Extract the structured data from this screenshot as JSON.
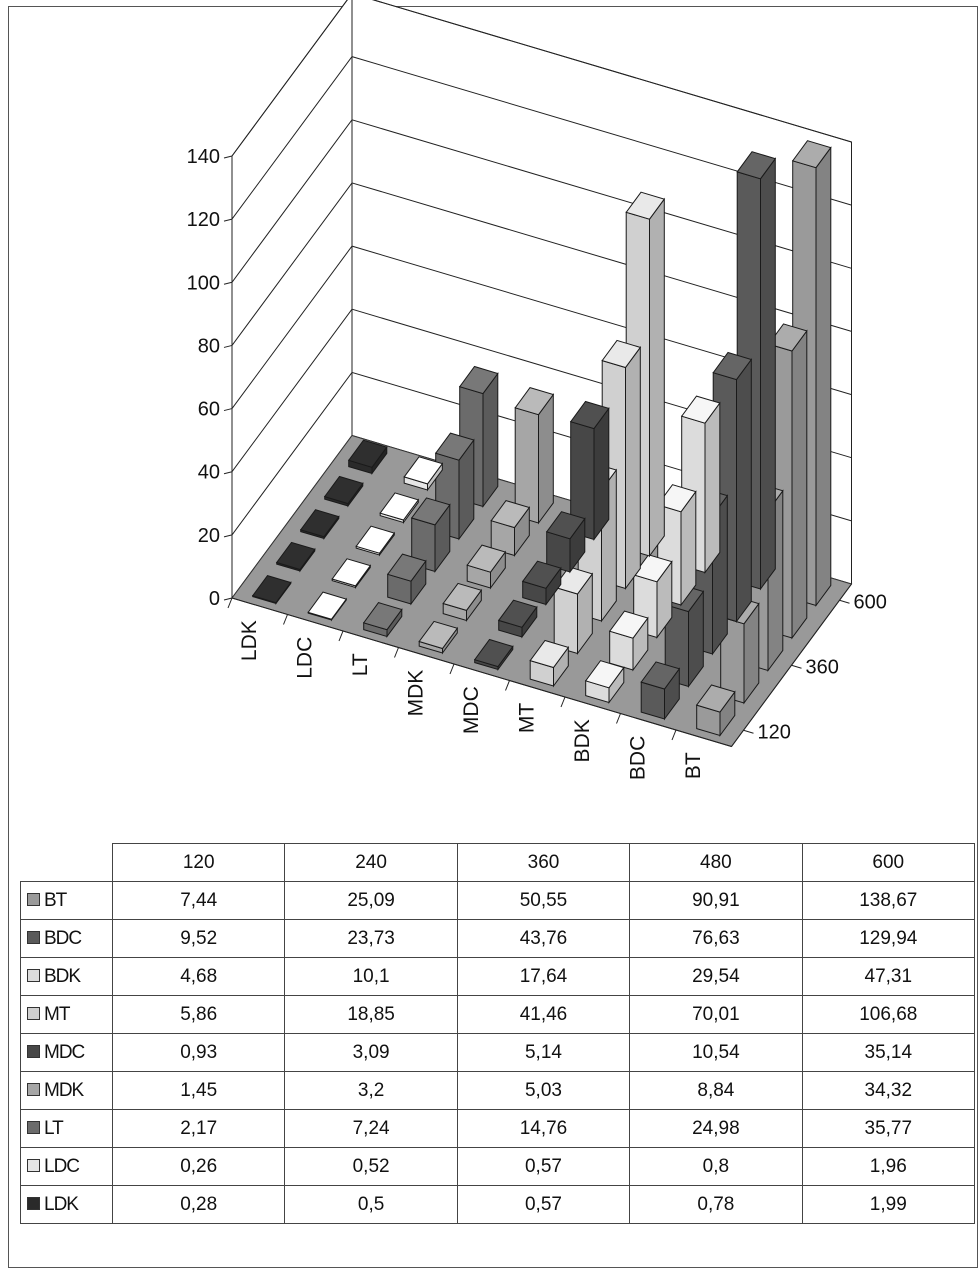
{
  "chart_data": {
    "type": "bar",
    "variant": "3d-grouped-bar",
    "categories": [
      "120",
      "240",
      "360",
      "480",
      "600"
    ],
    "series": [
      {
        "name": "BT",
        "values": [
          7.44,
          25.09,
          50.55,
          90.91,
          138.67
        ],
        "value_labels": [
          "7,44",
          "25,09",
          "50,55",
          "90,91",
          "138,67"
        ],
        "color": "#9a9a9a"
      },
      {
        "name": "BDC",
        "values": [
          9.52,
          23.73,
          43.76,
          76.63,
          129.94
        ],
        "value_labels": [
          "9,52",
          "23,73",
          "43,76",
          "76,63",
          "129,94"
        ],
        "color": "#5a5a5a"
      },
      {
        "name": "BDK",
        "values": [
          4.68,
          10.1,
          17.64,
          29.54,
          47.31
        ],
        "value_labels": [
          "4,68",
          "10,1",
          "17,64",
          "29,54",
          "47,31"
        ],
        "color": "#dcdcdc"
      },
      {
        "name": "MT",
        "values": [
          5.86,
          18.85,
          41.46,
          70.01,
          106.68
        ],
        "value_labels": [
          "5,86",
          "18,85",
          "41,46",
          "70,01",
          "106,68"
        ],
        "color": "#d0d0d0"
      },
      {
        "name": "MDC",
        "values": [
          0.93,
          3.09,
          5.14,
          10.54,
          35.14
        ],
        "value_labels": [
          "0,93",
          "3,09",
          "5,14",
          "10,54",
          "35,14"
        ],
        "color": "#474747"
      },
      {
        "name": "MDK",
        "values": [
          1.45,
          3.2,
          5.03,
          8.84,
          34.32
        ],
        "value_labels": [
          "1,45",
          "3,2",
          "5,03",
          "8,84",
          "34,32"
        ],
        "color": "#a6a6a6"
      },
      {
        "name": "LT",
        "values": [
          2.17,
          7.24,
          14.76,
          24.98,
          35.77
        ],
        "value_labels": [
          "2,17",
          "7,24",
          "14,76",
          "24,98",
          "35,77"
        ],
        "color": "#6b6b6b"
      },
      {
        "name": "LDC",
        "values": [
          0.26,
          0.52,
          0.57,
          0.8,
          1.96
        ],
        "value_labels": [
          "0,26",
          "0,52",
          "0,57",
          "0,8",
          "1,96"
        ],
        "color": "#e6e6e6"
      },
      {
        "name": "LDK",
        "values": [
          0.28,
          0.5,
          0.57,
          0.78,
          1.99
        ],
        "value_labels": [
          "0,28",
          "0,5",
          "0,57",
          "0,78",
          "1,99"
        ],
        "color": "#2a2a2a"
      }
    ],
    "x_axis_order": [
      "LDK",
      "LDC",
      "LT",
      "MDK",
      "MDC",
      "MT",
      "BDK",
      "BDC",
      "BT"
    ],
    "depth_tick_labels": [
      "120",
      "360",
      "600"
    ],
    "y_ticks": [
      "0",
      "20",
      "40",
      "60",
      "80",
      "100",
      "120",
      "140"
    ],
    "ylim": [
      0,
      140
    ],
    "title": "",
    "xlabel": "",
    "ylabel": "",
    "grid": true,
    "legend": "data-table-below",
    "wall_color": "#ffffff",
    "floor_color": "#999999"
  }
}
